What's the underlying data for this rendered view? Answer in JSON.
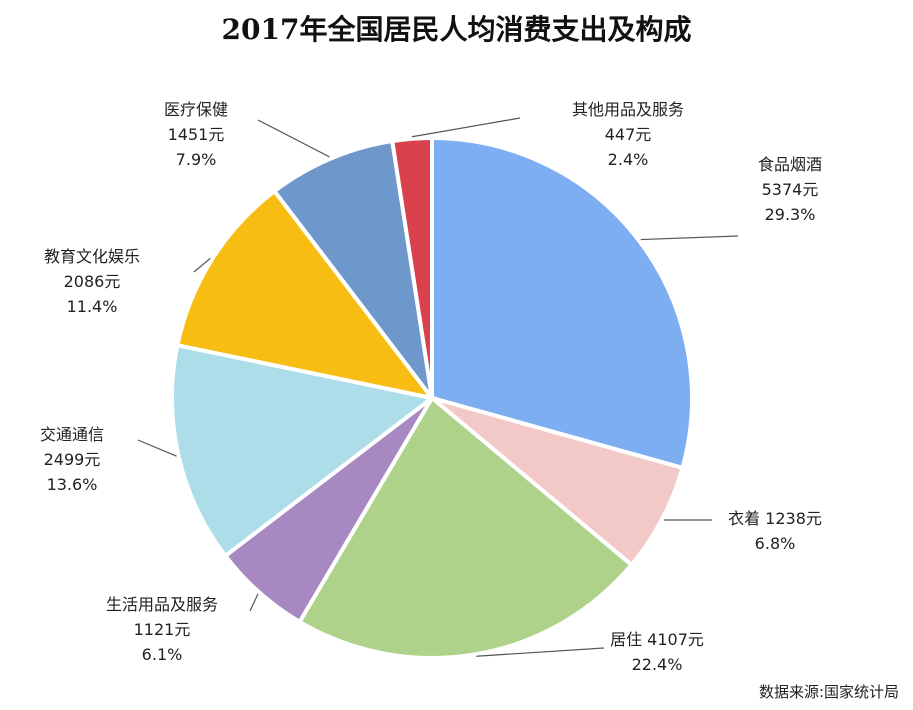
{
  "chart_data": {
    "type": "pie",
    "title": "2017年全国居民人均消费支出及构成",
    "source": "数据来源:国家统计局",
    "slices": [
      {
        "name": "食品烟酒",
        "value": 5374,
        "value_label": "5374元",
        "percent": 29.3,
        "percent_label": "29.3%",
        "color": "#7eaef2"
      },
      {
        "name": "衣着",
        "value": 1238,
        "value_label": "1238元",
        "percent": 6.8,
        "percent_label": "6.8%",
        "color": "#f3c9c7"
      },
      {
        "name": "居住",
        "value": 4107,
        "value_label": "4107元",
        "percent": 22.4,
        "percent_label": "22.4%",
        "color": "#afd28a"
      },
      {
        "name": "生活用品及服务",
        "value": 1121,
        "value_label": "1121元",
        "percent": 6.1,
        "percent_label": "6.1%",
        "color": "#a888c1"
      },
      {
        "name": "交通通信",
        "value": 2499,
        "value_label": "2499元",
        "percent": 13.6,
        "percent_label": "13.6%",
        "color": "#acdde9"
      },
      {
        "name": "教育文化娱乐",
        "value": 2086,
        "value_label": "2086元",
        "percent": 11.4,
        "percent_label": "11.4%",
        "color": "#f8bd12"
      },
      {
        "name": "医疗保健",
        "value": 1451,
        "value_label": "1451元",
        "percent": 7.9,
        "percent_label": "7.9%",
        "color": "#6e97cb"
      },
      {
        "name": "其他用品及服务",
        "value": 447,
        "value_label": "447元",
        "percent": 2.4,
        "percent_label": "2.4%",
        "color": "#d9414c"
      }
    ]
  }
}
